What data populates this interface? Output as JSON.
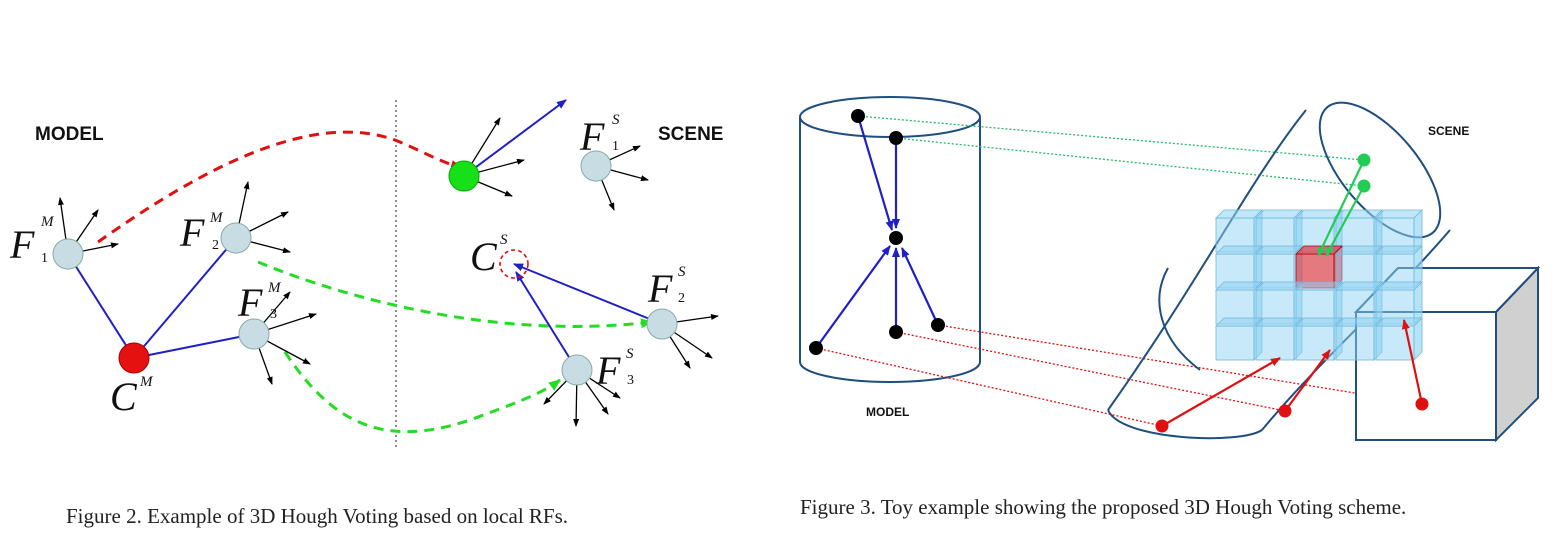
{
  "figure2": {
    "caption": "Figure 2.   Example of 3D Hough Voting based on local RFs.",
    "model_label": "MODEL",
    "scene_label": "SCENE",
    "f1m": {
      "base": "F",
      "sup": "M",
      "sub": "1"
    },
    "f2m": {
      "base": "F",
      "sup": "M",
      "sub": "2"
    },
    "f3m": {
      "base": "F",
      "sup": "M",
      "sub": "3"
    },
    "cm": {
      "base": "C",
      "sup": "M"
    },
    "f1s": {
      "base": "F",
      "sup": "S",
      "sub": "1"
    },
    "f2s": {
      "base": "F",
      "sup": "S",
      "sub": "2"
    },
    "f3s": {
      "base": "F",
      "sup": "S",
      "sub": "3"
    },
    "cs": {
      "base": "C",
      "sup": "S"
    }
  },
  "figure3": {
    "caption": "Figure 3.   Toy example showing the proposed 3D Hough Voting scheme.",
    "model_label": "MODEL",
    "scene_label": "SCENE"
  },
  "colors": {
    "blue_line": "#1f1fc8",
    "red_dash": "#e01010",
    "green_dash": "#22dd22",
    "feature_fill": "#c8dde3",
    "centroid_fill": "#e51010",
    "scene_centroid": "#18e018",
    "outline_blue": "#1f4e7f",
    "cube_blue": "#8fd4f4"
  }
}
